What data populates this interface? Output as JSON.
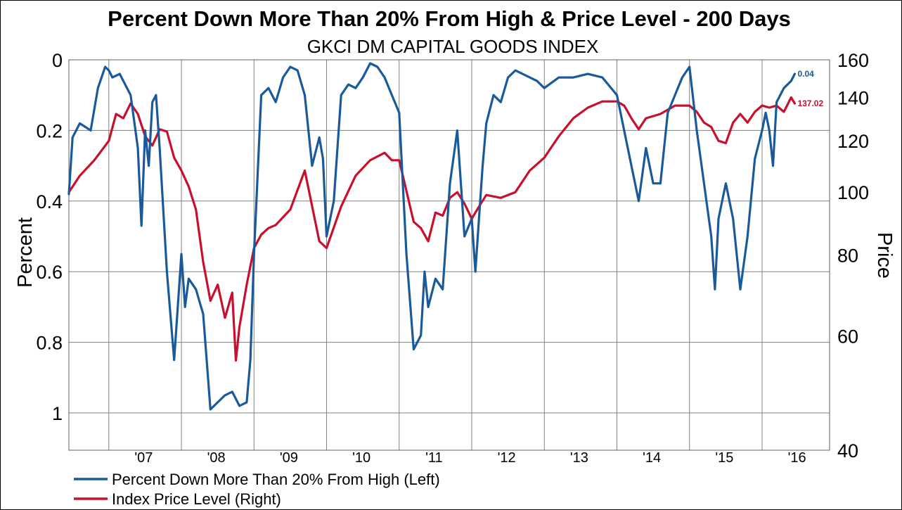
{
  "chart_data": {
    "type": "line",
    "title": "Percent Down More Than 20% From High & Price Level - 200 Days",
    "subtitle": "GKCI DM CAPITAL GOODS INDEX",
    "ylabel_left": "Percent",
    "ylabel_right": "Price",
    "y_left_ticks": [
      "0",
      "0.2",
      "0.4",
      "0.6",
      "0.8",
      "1"
    ],
    "y_right_ticks": [
      "160",
      "140",
      "120",
      "100",
      "80",
      "60",
      "40"
    ],
    "x_tick_labels": [
      "'07",
      "'08",
      "'09",
      "'10",
      "'11",
      "'12",
      "'13",
      "'14",
      "'15",
      "'16"
    ],
    "y_left_range": [
      0,
      1
    ],
    "y_left_inverted": true,
    "y_right_range": [
      40,
      160
    ],
    "y_right_scale": "log",
    "grid": true,
    "legend_position": "bottom-left",
    "series": [
      {
        "name": "Percent Down More Than 20% From High (Left)",
        "axis": "left",
        "color": "#1a5a9a",
        "end_label": "0.04",
        "x": [
          2006.45,
          2006.5,
          2006.6,
          2006.75,
          2006.85,
          2006.95,
          2007.0,
          2007.05,
          2007.15,
          2007.3,
          2007.4,
          2007.45,
          2007.5,
          2007.55,
          2007.6,
          2007.65,
          2007.7,
          2007.8,
          2007.9,
          2008.0,
          2008.05,
          2008.1,
          2008.2,
          2008.3,
          2008.4,
          2008.5,
          2008.6,
          2008.7,
          2008.8,
          2008.9,
          2008.95,
          2009.0,
          2009.1,
          2009.2,
          2009.3,
          2009.4,
          2009.5,
          2009.6,
          2009.7,
          2009.8,
          2009.9,
          2009.95,
          2010.0,
          2010.1,
          2010.2,
          2010.3,
          2010.4,
          2010.5,
          2010.6,
          2010.7,
          2010.8,
          2010.9,
          2011.0,
          2011.1,
          2011.2,
          2011.3,
          2011.35,
          2011.4,
          2011.5,
          2011.6,
          2011.7,
          2011.8,
          2011.9,
          2012.0,
          2012.05,
          2012.1,
          2012.15,
          2012.2,
          2012.3,
          2012.4,
          2012.5,
          2012.6,
          2012.7,
          2012.8,
          2012.9,
          2013.0,
          2013.2,
          2013.4,
          2013.6,
          2013.8,
          2014.0,
          2014.1,
          2014.2,
          2014.3,
          2014.4,
          2014.5,
          2014.6,
          2014.7,
          2014.8,
          2014.9,
          2015.0,
          2015.1,
          2015.2,
          2015.3,
          2015.35,
          2015.4,
          2015.5,
          2015.6,
          2015.7,
          2015.8,
          2015.9,
          2016.0,
          2016.05,
          2016.1,
          2016.15,
          2016.2,
          2016.3,
          2016.4,
          2016.45
        ],
        "values": [
          0.38,
          0.22,
          0.18,
          0.2,
          0.08,
          0.02,
          0.03,
          0.05,
          0.04,
          0.1,
          0.25,
          0.47,
          0.2,
          0.3,
          0.12,
          0.1,
          0.25,
          0.6,
          0.85,
          0.55,
          0.7,
          0.62,
          0.65,
          0.72,
          0.99,
          0.97,
          0.95,
          0.94,
          0.98,
          0.97,
          0.85,
          0.55,
          0.1,
          0.08,
          0.12,
          0.05,
          0.02,
          0.03,
          0.1,
          0.3,
          0.22,
          0.28,
          0.5,
          0.4,
          0.1,
          0.07,
          0.08,
          0.05,
          0.01,
          0.02,
          0.05,
          0.1,
          0.15,
          0.55,
          0.82,
          0.78,
          0.6,
          0.7,
          0.62,
          0.65,
          0.35,
          0.2,
          0.5,
          0.45,
          0.6,
          0.45,
          0.3,
          0.18,
          0.1,
          0.12,
          0.05,
          0.03,
          0.04,
          0.05,
          0.06,
          0.08,
          0.05,
          0.05,
          0.04,
          0.05,
          0.1,
          0.2,
          0.3,
          0.4,
          0.25,
          0.35,
          0.35,
          0.15,
          0.1,
          0.05,
          0.02,
          0.2,
          0.35,
          0.5,
          0.65,
          0.45,
          0.35,
          0.45,
          0.65,
          0.5,
          0.28,
          0.2,
          0.15,
          0.2,
          0.3,
          0.12,
          0.08,
          0.06,
          0.04
        ]
      },
      {
        "name": "Index Price Level (Right)",
        "axis": "right",
        "color": "#c8102e",
        "end_label": "137.02",
        "x": [
          2006.45,
          2006.6,
          2006.8,
          2007.0,
          2007.1,
          2007.2,
          2007.3,
          2007.4,
          2007.5,
          2007.6,
          2007.7,
          2007.8,
          2007.9,
          2008.0,
          2008.1,
          2008.2,
          2008.3,
          2008.4,
          2008.5,
          2008.6,
          2008.7,
          2008.75,
          2008.8,
          2008.9,
          2009.0,
          2009.1,
          2009.2,
          2009.3,
          2009.5,
          2009.7,
          2009.9,
          2010.0,
          2010.2,
          2010.4,
          2010.6,
          2010.8,
          2010.9,
          2011.0,
          2011.2,
          2011.3,
          2011.4,
          2011.5,
          2011.6,
          2011.7,
          2011.8,
          2011.9,
          2012.0,
          2012.1,
          2012.2,
          2012.4,
          2012.6,
          2012.8,
          2013.0,
          2013.2,
          2013.4,
          2013.6,
          2013.8,
          2014.0,
          2014.1,
          2014.2,
          2014.3,
          2014.4,
          2014.6,
          2014.8,
          2015.0,
          2015.1,
          2015.2,
          2015.3,
          2015.4,
          2015.5,
          2015.6,
          2015.7,
          2015.8,
          2015.9,
          2016.0,
          2016.1,
          2016.2,
          2016.3,
          2016.4,
          2016.45
        ],
        "values": [
          100,
          106,
          112,
          120,
          132,
          130,
          137,
          132,
          122,
          118,
          125,
          124,
          113,
          108,
          102,
          94,
          78,
          68,
          72,
          64,
          70,
          55,
          62,
          72,
          82,
          86,
          88,
          89,
          94,
          108,
          84,
          82,
          95,
          106,
          112,
          115,
          112,
          112,
          90,
          88,
          84,
          93,
          92,
          98,
          100,
          96,
          91,
          95,
          99,
          98,
          100,
          108,
          113,
          122,
          130,
          135,
          138,
          138,
          136,
          130,
          125,
          130,
          132,
          136,
          136,
          133,
          128,
          126,
          120,
          119,
          128,
          132,
          128,
          133,
          136,
          135,
          136,
          133,
          140,
          137
        ]
      }
    ]
  },
  "legend": {
    "series_0_label": "Percent Down More Than 20% From High (Left)",
    "series_1_label": "Index Price Level (Right)"
  }
}
